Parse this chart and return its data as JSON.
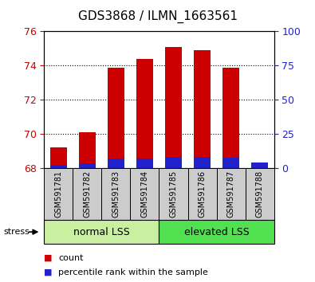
{
  "title": "GDS3868 / ILMN_1663561",
  "samples": [
    "GSM591781",
    "GSM591782",
    "GSM591783",
    "GSM591784",
    "GSM591785",
    "GSM591786",
    "GSM591787",
    "GSM591788"
  ],
  "red_values": [
    69.2,
    70.1,
    73.85,
    74.35,
    75.05,
    74.9,
    73.85,
    68.07
  ],
  "blue_values": [
    68.18,
    68.25,
    68.55,
    68.55,
    68.65,
    68.65,
    68.6,
    68.3
  ],
  "baseline": 68.0,
  "ylim_left": [
    68,
    76
  ],
  "ylim_right": [
    0,
    100
  ],
  "yticks_left": [
    68,
    70,
    72,
    74,
    76
  ],
  "yticks_right": [
    0,
    25,
    50,
    75,
    100
  ],
  "groups": [
    {
      "label": "normal LSS",
      "start": 0,
      "end": 4,
      "color": "#c8f0a0"
    },
    {
      "label": "elevated LSS",
      "start": 4,
      "end": 8,
      "color": "#50e050"
    }
  ],
  "stress_label": "stress",
  "bar_width": 0.6,
  "red_color": "#cc0000",
  "blue_color": "#2222cc",
  "bg_color": "#cccccc",
  "plot_bg": "#ffffff",
  "left_tick_color": "#cc0000",
  "right_tick_color": "#2222cc",
  "legend_square_size": 8,
  "title_fontsize": 11,
  "tick_fontsize": 9,
  "label_fontsize": 8,
  "group_fontsize": 9,
  "sample_fontsize": 7
}
